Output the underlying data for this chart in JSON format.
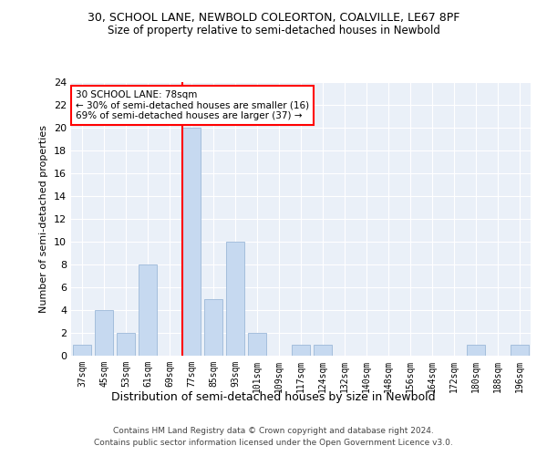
{
  "title": "30, SCHOOL LANE, NEWBOLD COLEORTON, COALVILLE, LE67 8PF",
  "subtitle": "Size of property relative to semi-detached houses in Newbold",
  "xlabel": "Distribution of semi-detached houses by size in Newbold",
  "ylabel": "Number of semi-detached properties",
  "bar_labels": [
    "37sqm",
    "45sqm",
    "53sqm",
    "61sqm",
    "69sqm",
    "77sqm",
    "85sqm",
    "93sqm",
    "101sqm",
    "109sqm",
    "117sqm",
    "124sqm",
    "132sqm",
    "140sqm",
    "148sqm",
    "156sqm",
    "164sqm",
    "172sqm",
    "180sqm",
    "188sqm",
    "196sqm"
  ],
  "bar_values": [
    1,
    4,
    2,
    8,
    0,
    20,
    5,
    10,
    2,
    0,
    1,
    1,
    0,
    0,
    0,
    0,
    0,
    0,
    1,
    0,
    1
  ],
  "bar_color": "#c6d9f0",
  "bar_edgecolor": "#9cb8d8",
  "red_line_index": 5,
  "annotation_text_line1": "30 SCHOOL LANE: 78sqm",
  "annotation_text_line2": "← 30% of semi-detached houses are smaller (16)",
  "annotation_text_line3": "69% of semi-detached houses are larger (37) →",
  "ylim": [
    0,
    24
  ],
  "yticks": [
    0,
    2,
    4,
    6,
    8,
    10,
    12,
    14,
    16,
    18,
    20,
    22,
    24
  ],
  "plot_bg_color": "#eaf0f8",
  "grid_color": "#ffffff",
  "footer_line1": "Contains HM Land Registry data © Crown copyright and database right 2024.",
  "footer_line2": "Contains public sector information licensed under the Open Government Licence v3.0."
}
